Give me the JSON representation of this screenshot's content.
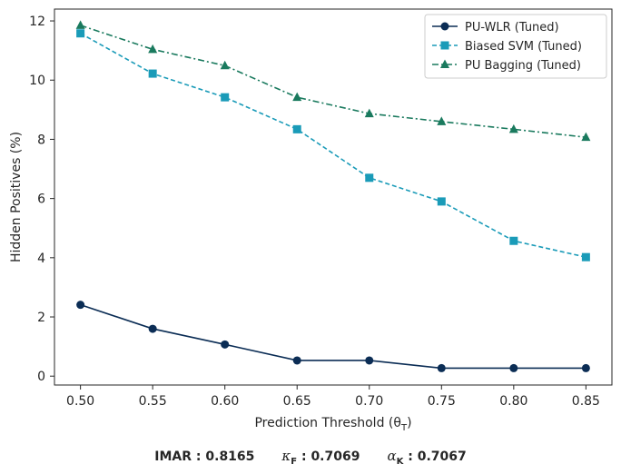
{
  "chart_data": {
    "type": "line",
    "xlabel": "Prediction Threshold (θ",
    "xlabel_sub": "T",
    "xlabel_close": ")",
    "ylabel": "Hidden Positives (%)",
    "x": [
      0.5,
      0.55,
      0.6,
      0.65,
      0.7,
      0.75,
      0.8,
      0.85
    ],
    "x_tick_labels": [
      "0.50",
      "0.55",
      "0.60",
      "0.65",
      "0.70",
      "0.75",
      "0.80",
      "0.85"
    ],
    "y_ticks": [
      0,
      2,
      4,
      6,
      8,
      10,
      12
    ],
    "y_tick_labels": [
      "0",
      "2",
      "4",
      "6",
      "8",
      "10",
      "12"
    ],
    "xlim": [
      0.482,
      0.868
    ],
    "ylim": [
      -0.3,
      12.4
    ],
    "grid": false,
    "legend_position": "top-right",
    "series": [
      {
        "name": "PU-WLR (Tuned)",
        "color": "#0b2d55",
        "line_style": "solid",
        "marker": "circle",
        "values": [
          2.41,
          1.6,
          1.07,
          0.53,
          0.53,
          0.27,
          0.27,
          0.27
        ]
      },
      {
        "name": "Biased SVM (Tuned)",
        "color": "#1a9bb8",
        "line_style": "dashed",
        "marker": "square",
        "values": [
          11.58,
          10.22,
          9.42,
          8.34,
          6.7,
          5.9,
          4.57,
          4.02
        ]
      },
      {
        "name": "PU Bagging (Tuned)",
        "color": "#1a7a5e",
        "line_style": "dashdot",
        "marker": "triangle",
        "values": [
          11.85,
          11.04,
          10.49,
          9.42,
          8.87,
          8.6,
          8.34,
          8.07
        ]
      }
    ]
  },
  "footer": {
    "imar_label": "IMAR",
    "imar_value": " : 0.8165",
    "kappa_symbol": "κ",
    "kappa_sub": "F",
    "kappa_value": " : 0.7069",
    "alpha_symbol": "α",
    "alpha_sub": "K",
    "alpha_value": " : 0.7067"
  }
}
